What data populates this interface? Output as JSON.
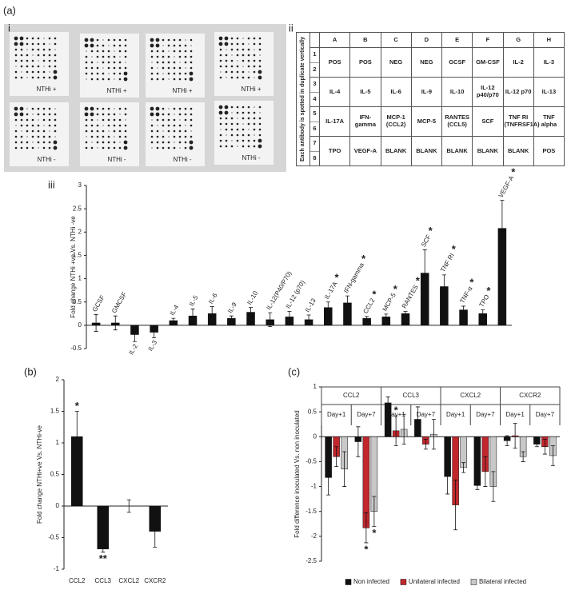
{
  "figure": {
    "panel_a": "(a)",
    "panel_b": "(b)",
    "panel_c": "(c)",
    "sub_i": "i",
    "sub_ii": "ii",
    "sub_iii": "iii"
  },
  "membranes": [
    "NTHi +",
    "NTHi +",
    "NTHi +",
    "NTHi +",
    "NTHi -",
    "NTHi -",
    "NTHi -",
    "NTHi -"
  ],
  "table": {
    "side_label": "Each antibody is spotted in duplicate vertically",
    "columns": [
      "A",
      "B",
      "C",
      "D",
      "E",
      "F",
      "G",
      "H"
    ],
    "rows": [
      {
        "numbers": [
          "1",
          "2"
        ],
        "cells": [
          "POS",
          "POS",
          "NEG",
          "NEG",
          "GCSF",
          "GM-CSF",
          "IL-2",
          "IL-3"
        ]
      },
      {
        "numbers": [
          "3",
          "4"
        ],
        "cells": [
          "IL-4",
          "IL-5",
          "IL-6",
          "IL-9",
          "IL-10",
          "IL-12 p40/p70",
          "IL-12 p70",
          "IL-13"
        ]
      },
      {
        "numbers": [
          "5",
          "6"
        ],
        "cells": [
          "IL-17A",
          "IFN-gamma",
          "MCP-1 (CCL2)",
          "MCP-5",
          "RANTES (CCL5)",
          "SCF",
          "TNF RI (TNFRSF1A)",
          "TNF alpha"
        ]
      },
      {
        "numbers": [
          "7",
          "8"
        ],
        "cells": [
          "TPO",
          "VEGF-A",
          "BLANK",
          "BLANK",
          "BLANK",
          "BLANK",
          "BLANK",
          "POS"
        ]
      }
    ]
  },
  "chart_data": [
    {
      "type": "bar",
      "y_label": "Fold change NTHi +ve Vs. NTHi -ve",
      "categories": [
        "GCSF",
        "GMCSF",
        "IL-2",
        "IL-3",
        "IL-4",
        "IL-5",
        "IL-6",
        "IL-9",
        "IL-10",
        "IL-12(P40/P70)",
        "IL-12 (p70)",
        "IL-13",
        "IL-17A",
        "IFN-gamma",
        "CCL2",
        "MCP-5",
        "RANTES",
        "SCF",
        "TNF RI",
        "TNF-α",
        "TPO",
        "VEGF-A"
      ],
      "values": [
        0.05,
        0.05,
        -0.2,
        -0.15,
        0.1,
        0.2,
        0.25,
        0.15,
        0.28,
        0.12,
        0.18,
        0.12,
        0.38,
        0.48,
        0.15,
        0.18,
        0.25,
        1.12,
        0.83,
        0.33,
        0.25,
        2.08
      ],
      "errors": [
        0.18,
        0.15,
        0.15,
        0.12,
        0.05,
        0.15,
        0.15,
        0.05,
        0.1,
        0.15,
        0.12,
        0.1,
        0.12,
        0.15,
        0.04,
        0.06,
        0.05,
        0.5,
        0.25,
        0.08,
        0.08,
        0.6
      ],
      "significance": [
        null,
        null,
        null,
        null,
        null,
        null,
        null,
        null,
        null,
        null,
        null,
        null,
        "*",
        "*",
        "*",
        "*",
        "*",
        "*",
        "*",
        "*",
        "*",
        "*"
      ],
      "color": "#111111",
      "ylim": [
        -0.5,
        3
      ],
      "yticks": [
        -0.5,
        0,
        0.5,
        1,
        1.5,
        2,
        2.5,
        3
      ]
    },
    {
      "type": "bar",
      "y_label": "Fold change NTHi+ve Vs. NTHi-ve",
      "categories": [
        "CCL2",
        "CCL3",
        "CXCL2",
        "CXCR2"
      ],
      "values": [
        1.1,
        -0.68,
        0,
        -0.4
      ],
      "errors": [
        0.4,
        0.05,
        0.1,
        0.25
      ],
      "significance": [
        "*",
        "**",
        null,
        null
      ],
      "color": "#111111",
      "ylim": [
        -1,
        2
      ],
      "yticks": [
        -1,
        -0.5,
        0,
        0.5,
        1,
        1.5,
        2
      ]
    },
    {
      "type": "bar",
      "y_label": "Fold difference inoculated Vs. non inoculated",
      "groups": [
        "CCL2",
        "CCL3",
        "CXCL2",
        "CXCR2"
      ],
      "categories": [
        "Day+1",
        "Day+7",
        "Day+1",
        "Day+7",
        "Day+1",
        "Day+7",
        "Day+1",
        "Day+7"
      ],
      "series": [
        {
          "name": "Non infected",
          "color": "#111111",
          "values": [
            -0.82,
            -0.1,
            0.68,
            0.35,
            -0.8,
            -0.98,
            -0.08,
            -0.15
          ],
          "errors": [
            0.35,
            0.3,
            0.12,
            0.25,
            0.35,
            0.08,
            0.1,
            0.05
          ]
        },
        {
          "name": "Unilateral infected",
          "color": "#c1272d",
          "values": [
            -0.4,
            -1.83,
            0.12,
            -0.15,
            -1.37,
            -0.7,
            0.02,
            -0.2
          ],
          "errors": [
            0.2,
            0.3,
            0.3,
            0.1,
            0.5,
            0.3,
            0.25,
            0.15
          ],
          "significance": [
            null,
            "*",
            "*",
            null,
            null,
            null,
            null,
            null
          ]
        },
        {
          "name": "Bilateral infected",
          "color": "#c8c8c8",
          "values": [
            -0.65,
            -1.5,
            0.15,
            0.05,
            -0.62,
            -1.0,
            -0.4,
            -0.38
          ],
          "errors": [
            0.35,
            0.3,
            0.3,
            0.3,
            0.1,
            0.3,
            0.1,
            0.2
          ],
          "significance": [
            null,
            "*",
            null,
            null,
            null,
            null,
            null,
            null
          ]
        }
      ],
      "legend": "bottom",
      "ylim": [
        -2.5,
        1
      ],
      "yticks": [
        -2.5,
        -2,
        -1.5,
        -1,
        -0.5,
        0,
        0.5,
        1
      ]
    }
  ]
}
